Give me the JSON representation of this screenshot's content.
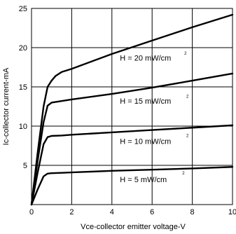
{
  "chart_data": {
    "type": "line",
    "title": "",
    "xlabel": "Vce-collector emitter voltage-V",
    "ylabel": "Ic-collector current-mA",
    "xlim": [
      0,
      10
    ],
    "ylim": [
      0,
      25
    ],
    "xticks": [
      0,
      2,
      4,
      6,
      8,
      10
    ],
    "yticks": [
      5,
      10,
      15,
      20,
      25
    ],
    "grid": true,
    "legend": "none",
    "series": [
      {
        "name": "H = 20 mW/cm²",
        "x": [
          0,
          0.3,
          0.6,
          0.8,
          1.0,
          1.2,
          1.5,
          2.0,
          4.0,
          6.0,
          8.0,
          10.0
        ],
        "y": [
          0,
          6.5,
          12.5,
          15.0,
          15.8,
          16.4,
          16.9,
          17.3,
          19.2,
          20.9,
          22.6,
          24.2
        ]
      },
      {
        "name": "H = 15 mW/cm²",
        "x": [
          0,
          0.3,
          0.6,
          0.8,
          1.0,
          1.5,
          2.0,
          4.0,
          6.0,
          8.0,
          10.0
        ],
        "y": [
          0,
          5.5,
          10.5,
          12.6,
          13.0,
          13.2,
          13.4,
          14.1,
          14.9,
          15.8,
          16.7
        ]
      },
      {
        "name": "H = 10 mW/cm²",
        "x": [
          0,
          0.3,
          0.6,
          0.8,
          1.0,
          1.5,
          2.0,
          4.0,
          6.0,
          8.0,
          10.0
        ],
        "y": [
          0,
          4.0,
          7.7,
          8.6,
          8.75,
          8.8,
          8.9,
          9.2,
          9.5,
          9.8,
          10.1
        ]
      },
      {
        "name": "H = 5 mW/cm²",
        "x": [
          0,
          0.3,
          0.6,
          0.8,
          1.0,
          1.5,
          2.0,
          4.0,
          6.0,
          8.0,
          10.0
        ],
        "y": [
          0,
          1.9,
          3.6,
          3.95,
          4.0,
          4.05,
          4.1,
          4.3,
          4.45,
          4.6,
          4.8
        ]
      }
    ],
    "annotations": [
      {
        "series": 0,
        "text": "H = 20 mW/cm",
        "sup": "2",
        "x": 4.4,
        "y": 18.7,
        "sup_x": 7.6,
        "sup_y": 19.3
      },
      {
        "series": 1,
        "text": "H = 15 mW/cm",
        "sup": "2",
        "x": 4.4,
        "y": 13.2,
        "sup_x": 7.7,
        "sup_y": 13.8
      },
      {
        "series": 2,
        "text": "H = 10 mW/cm",
        "sup": "2",
        "x": 4.4,
        "y": 8.1,
        "sup_x": 7.7,
        "sup_y": 8.8
      },
      {
        "series": 3,
        "text": "H = 5 mW/cm",
        "sup": "2",
        "x": 4.4,
        "y": 3.2,
        "sup_x": 7.5,
        "sup_y": 4.0
      }
    ]
  }
}
